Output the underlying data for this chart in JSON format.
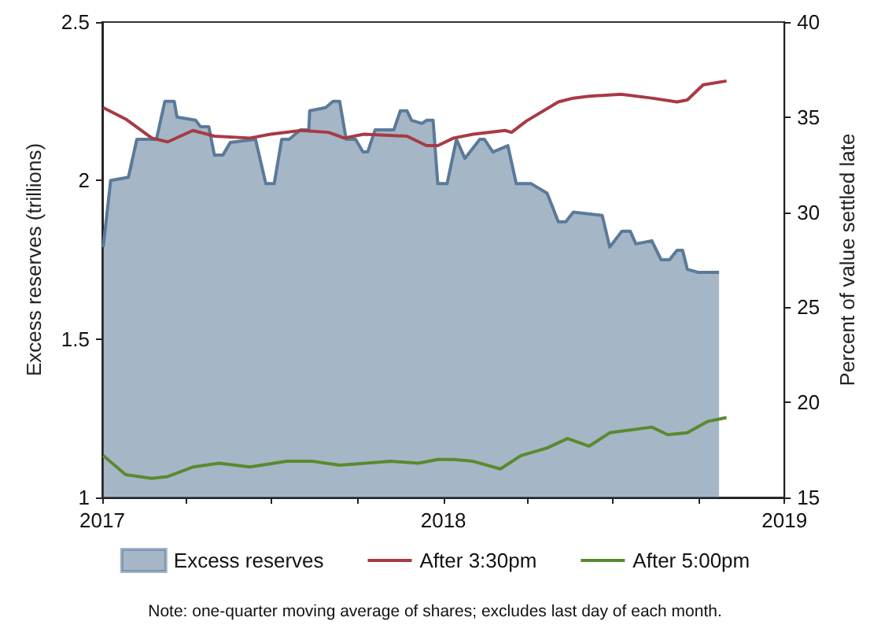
{
  "chart_data": {
    "type": "area",
    "ylabel": "Excess reserves (trillions)",
    "y2label": "Percent of value settled late",
    "annotations": [
      "Note: one-quarter moving average of shares; excludes last day of each month."
    ],
    "xlim": [
      "2017-01-01",
      "2019-01-01"
    ],
    "xticks": [
      {
        "value": "2017-01-01",
        "label": "2017"
      },
      {
        "value": "2017-04-01",
        "label": null
      },
      {
        "value": "2017-07-01",
        "label": null
      },
      {
        "value": "2017-10-01",
        "label": null
      },
      {
        "value": "2018-01-01",
        "label": "2018"
      },
      {
        "value": "2018-04-01",
        "label": null
      },
      {
        "value": "2018-07-01",
        "label": null
      },
      {
        "value": "2018-10-01",
        "label": null
      },
      {
        "value": "2019-01-01",
        "label": "2019"
      }
    ],
    "ylim": [
      1,
      2.5
    ],
    "yticks": [
      1,
      1.5,
      2,
      2.5
    ],
    "y2lim": [
      15,
      40
    ],
    "y2ticks": [
      15,
      20,
      25,
      30,
      35,
      40
    ],
    "legend": "bottom",
    "grid": false,
    "series": [
      {
        "name": "Excess reserves",
        "color": "#5b7a99",
        "x": [
          "2017-01-02",
          "2017-01-10",
          "2017-01-29",
          "2017-02-07",
          "2017-02-28",
          "2017-03-09",
          "2017-03-19",
          "2017-03-22",
          "2017-04-11",
          "2017-04-16",
          "2017-04-25",
          "2017-05-01",
          "2017-05-10",
          "2017-05-18",
          "2017-06-14",
          "2017-06-25",
          "2017-07-04",
          "2017-07-12",
          "2017-07-20",
          "2017-08-01",
          "2017-08-10",
          "2017-08-11",
          "2017-08-28",
          "2017-09-05",
          "2017-09-12",
          "2017-09-19",
          "2017-09-29",
          "2017-10-07",
          "2017-10-12",
          "2017-10-20",
          "2017-11-09",
          "2017-11-16",
          "2017-11-23",
          "2017-11-28",
          "2017-12-09",
          "2017-12-14",
          "2017-12-21",
          "2017-12-26",
          "2018-01-05",
          "2018-01-15",
          "2018-01-24",
          "2018-02-09",
          "2018-02-14",
          "2018-02-23",
          "2018-03-11",
          "2018-03-20",
          "2018-04-05",
          "2018-04-22",
          "2018-05-04",
          "2018-05-12",
          "2018-05-20",
          "2018-06-20",
          "2018-06-28",
          "2018-07-11",
          "2018-07-20",
          "2018-07-26",
          "2018-08-12",
          "2018-08-22",
          "2018-08-31",
          "2018-09-08",
          "2018-09-14",
          "2018-09-19",
          "2018-10-01",
          "2018-10-23"
        ],
        "values": [
          1.79,
          2.0,
          2.01,
          2.13,
          2.13,
          2.25,
          2.25,
          2.2,
          2.19,
          2.17,
          2.17,
          2.08,
          2.08,
          2.12,
          2.13,
          1.99,
          1.99,
          2.13,
          2.13,
          2.16,
          2.16,
          2.22,
          2.23,
          2.25,
          2.25,
          2.13,
          2.13,
          2.09,
          2.09,
          2.16,
          2.16,
          2.22,
          2.22,
          2.19,
          2.18,
          2.19,
          2.19,
          1.99,
          1.99,
          2.13,
          2.07,
          2.13,
          2.13,
          2.09,
          2.11,
          1.99,
          1.99,
          1.96,
          1.87,
          1.87,
          1.9,
          1.89,
          1.79,
          1.84,
          1.84,
          1.8,
          1.81,
          1.75,
          1.75,
          1.78,
          1.78,
          1.72,
          1.71,
          1.71
        ]
      },
      {
        "name": "After 3:30pm",
        "type": "line",
        "axis": "y2",
        "color": "#a83a44",
        "x": [
          "2017-01-02",
          "2017-01-26",
          "2017-02-23",
          "2017-03-12",
          "2017-04-08",
          "2017-05-01",
          "2017-06-08",
          "2017-06-30",
          "2017-08-02",
          "2017-08-31",
          "2017-09-17",
          "2017-10-08",
          "2017-11-23",
          "2017-12-14",
          "2017-12-26",
          "2018-01-12",
          "2018-02-02",
          "2018-03-08",
          "2018-03-15",
          "2018-03-31",
          "2018-05-04",
          "2018-05-20",
          "2018-06-06",
          "2018-07-10",
          "2018-08-12",
          "2018-09-08",
          "2018-09-19",
          "2018-10-06",
          "2018-10-31"
        ],
        "values": [
          35.5,
          34.9,
          33.9,
          33.7,
          34.3,
          34.0,
          33.9,
          34.1,
          34.3,
          34.2,
          33.9,
          34.1,
          34.0,
          33.5,
          33.5,
          33.9,
          34.1,
          34.3,
          34.2,
          34.8,
          35.8,
          36.0,
          36.1,
          36.2,
          36.0,
          35.8,
          35.9,
          36.7,
          36.9
        ]
      },
      {
        "name": "After 5:00pm",
        "type": "line",
        "axis": "y2",
        "color": "#5a8a2e",
        "x": [
          "2017-01-02",
          "2017-01-26",
          "2017-02-23",
          "2017-03-12",
          "2017-04-08",
          "2017-05-06",
          "2017-06-08",
          "2017-07-17",
          "2017-08-14",
          "2017-09-12",
          "2017-11-06",
          "2017-12-05",
          "2017-12-26",
          "2018-01-12",
          "2018-02-02",
          "2018-03-03",
          "2018-03-25",
          "2018-04-22",
          "2018-05-14",
          "2018-06-06",
          "2018-06-28",
          "2018-08-12",
          "2018-08-29",
          "2018-09-19",
          "2018-10-11",
          "2018-10-31"
        ],
        "values": [
          17.2,
          16.2,
          16.0,
          16.1,
          16.6,
          16.8,
          16.6,
          16.9,
          16.9,
          16.7,
          16.9,
          16.8,
          17.0,
          17.0,
          16.9,
          16.5,
          17.2,
          17.6,
          18.1,
          17.7,
          18.4,
          18.7,
          18.3,
          18.4,
          19.0,
          19.2
        ]
      }
    ]
  }
}
